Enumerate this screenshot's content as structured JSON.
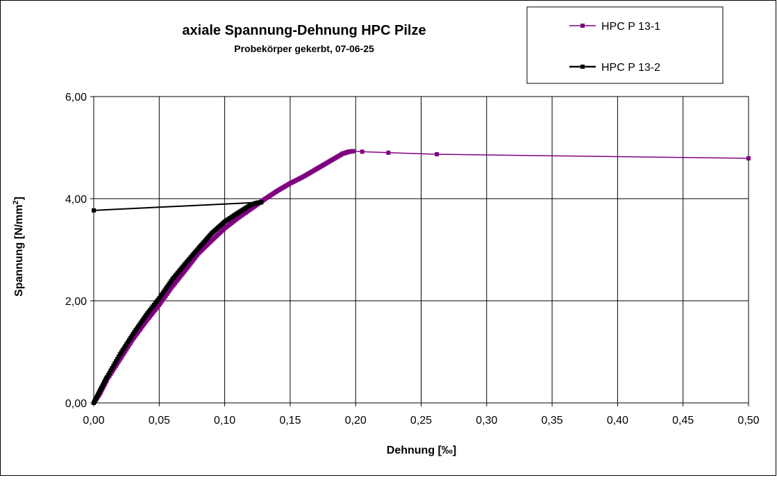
{
  "chart_data": {
    "type": "line",
    "title": "axiale Spannung-Dehnung HPC Pilze",
    "subtitle": "Probekörper gekerbt, 07-06-25",
    "xlabel": "Dehnung [‰]",
    "ylabel_main": "Spannung [N/mm",
    "ylabel_sup": "2",
    "ylabel_end": "]",
    "xlim": [
      0,
      0.5
    ],
    "ylim": [
      0,
      6
    ],
    "x_ticks": [
      "0,00",
      "0,05",
      "0,10",
      "0,15",
      "0,20",
      "0,25",
      "0,30",
      "0,35",
      "0,40",
      "0,45",
      "0,50"
    ],
    "y_ticks": [
      "0,00",
      "2,00",
      "4,00",
      "6,00"
    ],
    "grid": true,
    "legend_position": "top-right",
    "series": [
      {
        "name": "HPC P 13-1",
        "color": "#800080",
        "marker": "square",
        "x": [
          0.0,
          0.005,
          0.01,
          0.02,
          0.03,
          0.04,
          0.05,
          0.06,
          0.07,
          0.08,
          0.09,
          0.1,
          0.11,
          0.12,
          0.13,
          0.14,
          0.15,
          0.16,
          0.17,
          0.18,
          0.19,
          0.195,
          0.198,
          0.205,
          0.225,
          0.262,
          0.5
        ],
        "y": [
          0.0,
          0.2,
          0.45,
          0.85,
          1.25,
          1.6,
          1.92,
          2.28,
          2.6,
          2.93,
          3.18,
          3.42,
          3.62,
          3.8,
          3.98,
          4.15,
          4.3,
          4.43,
          4.58,
          4.73,
          4.88,
          4.92,
          4.93,
          4.92,
          4.9,
          4.87,
          4.79
        ]
      },
      {
        "name": "HPC P 13-2",
        "color": "#000000",
        "marker": "square",
        "x": [
          0.0,
          0.005,
          0.01,
          0.02,
          0.03,
          0.04,
          0.05,
          0.06,
          0.07,
          0.08,
          0.09,
          0.1,
          0.11,
          0.12,
          0.125,
          0.128,
          0.0
        ],
        "y": [
          0.0,
          0.25,
          0.5,
          0.95,
          1.35,
          1.72,
          2.05,
          2.42,
          2.73,
          3.03,
          3.32,
          3.55,
          3.72,
          3.88,
          3.92,
          3.93,
          3.77
        ]
      }
    ]
  }
}
